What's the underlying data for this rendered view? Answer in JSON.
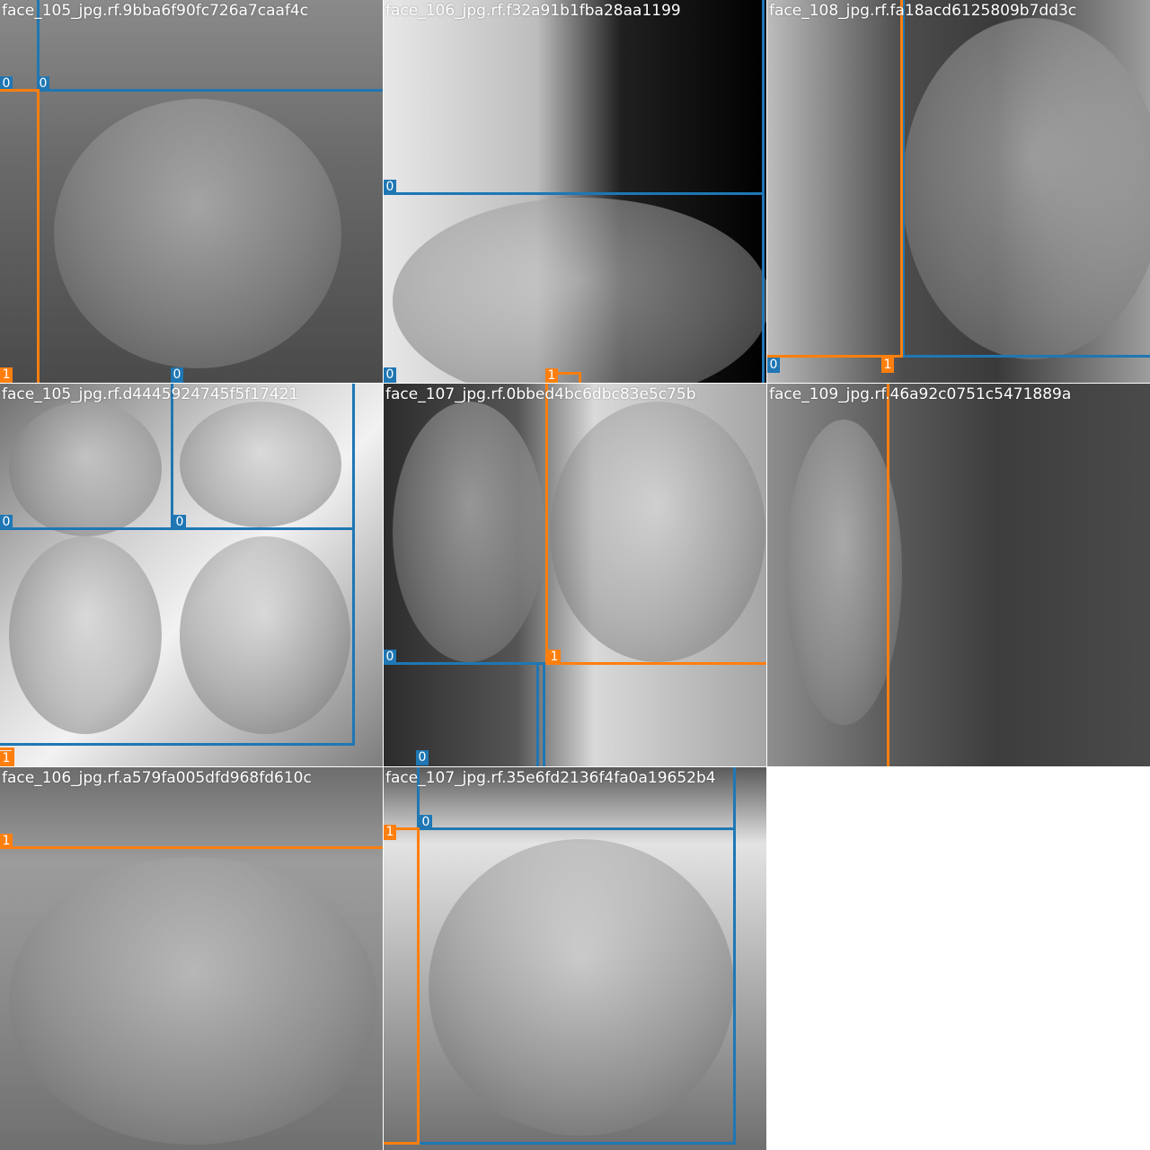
{
  "class_colors": {
    "0": "#1f77b4",
    "1": "#ff7f0e"
  },
  "tiles": [
    {
      "title": "face_105_jpg.rf.9bba6f90fc726a7caaf4c",
      "bg": "linear-gradient(180deg,#8a8a8a 0%,#6b6b6b 40%,#4a4a4a 100%)",
      "labels": [
        "0",
        "0",
        "0",
        "1"
      ]
    },
    {
      "title": "face_106_jpg.rf.f32a91b1fba28aa1199",
      "bg": "linear-gradient(90deg,#e8e8e8 0%,#bdbdbd 40%,#202020 62%,#000000 100%)",
      "labels": [
        "0",
        "0",
        "1"
      ]
    },
    {
      "title": "face_108_jpg.rf.fa18acd6125809b7dd3c",
      "bg": "linear-gradient(90deg,#bcbcbc 0%,#4d4d4d 35%,#3a3a3a 60%,#9d9d9d 100%)",
      "labels": [
        "0",
        "1"
      ]
    },
    {
      "title": "face_105_jpg.rf.d4445924745f5f17421",
      "bg": "linear-gradient(135deg,#6f6f6f 0%,#cfcfcf 35%,#f2f2f2 55%,#7d7d7d 100%)",
      "labels": [
        "0",
        "0",
        "1"
      ]
    },
    {
      "title": "face_107_jpg.rf.0bbed4bc6dbc83e5c75b",
      "bg": "linear-gradient(90deg,#2c2c2c 0%,#555555 35%,#d9d9d9 55%,#a5a5a5 100%)",
      "labels": [
        "0",
        "1",
        "0"
      ]
    },
    {
      "title": "face_109_jpg.rf.46a92c0751c5471889a",
      "bg": "linear-gradient(90deg,#8e8e8e 0%,#5e5e5e 30%,#3d3d3d 60%,#4a4a4a 100%)",
      "labels": []
    },
    {
      "title": "face_106_jpg.rf.a579fa005dfd968fd610c",
      "bg": "linear-gradient(180deg,#6d6d6d 0%,#9c9c9c 25%,#8a8a8a 60%,#707070 100%)",
      "labels": [
        "1"
      ]
    },
    {
      "title": "face_107_jpg.rf.35e6fd2136f4fa0a19652b4",
      "bg": "linear-gradient(180deg,#5a5a5a 0%,#e3e3e3 20%,#a9a9a9 60%,#6f6f6f 100%)",
      "labels": [
        "1",
        "0"
      ]
    }
  ]
}
